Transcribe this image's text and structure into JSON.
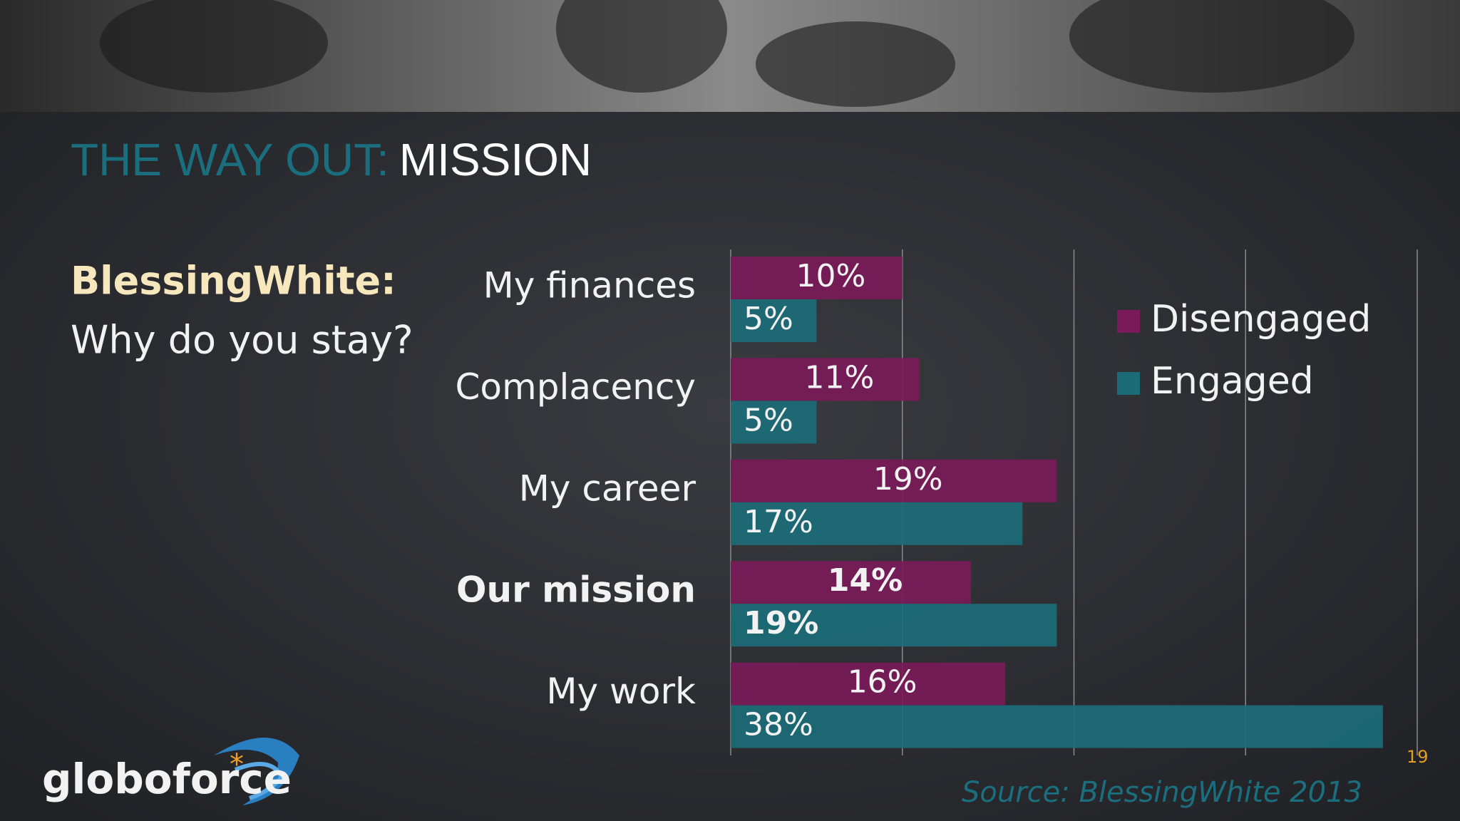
{
  "header": {
    "title_lead": "THE WAY OUT:",
    "title_main": "MISSION"
  },
  "intro": {
    "source_name": "BlessingWhite:",
    "question": "Why do you stay?"
  },
  "chart_data": {
    "type": "hbar",
    "categories": [
      "My finances",
      "Complacency",
      "My career",
      "Our mission",
      "My work"
    ],
    "series": [
      {
        "name": "Disengaged",
        "color": "#7a1a58",
        "values": [
          10,
          11,
          19,
          14,
          16
        ],
        "value_labels": [
          "10%",
          "11%",
          "19%",
          "14%",
          "16%"
        ]
      },
      {
        "name": "Engaged",
        "color": "#1b6c77",
        "values": [
          5,
          5,
          17,
          19,
          38
        ],
        "value_labels": [
          "5%",
          "5%",
          "17%",
          "19%",
          "38%"
        ]
      }
    ],
    "xlim": [
      0,
      40
    ],
    "xticks": [
      0,
      10,
      20,
      30,
      40
    ],
    "grid": true,
    "legend": "upper right"
  },
  "footer": {
    "source": "Source:  BlessingWhite 2013",
    "page": "19",
    "logo": "globoforce"
  }
}
